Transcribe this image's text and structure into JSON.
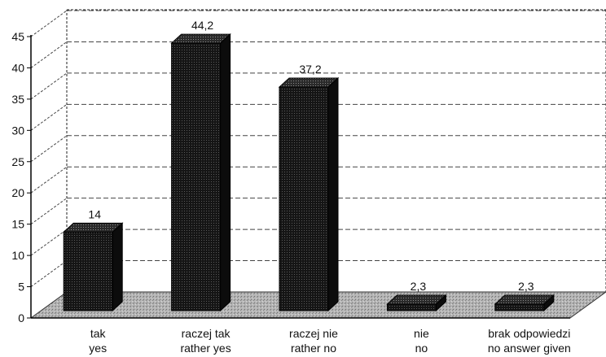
{
  "chart_data": {
    "type": "bar",
    "style": "3d-column",
    "categories": [
      [
        "tak",
        "yes"
      ],
      [
        "raczej tak",
        "rather yes"
      ],
      [
        "raczej nie",
        "rather no"
      ],
      [
        "nie",
        "no"
      ],
      [
        "brak odpowiedzi",
        "no answer given"
      ]
    ],
    "values": [
      14,
      44.2,
      37.2,
      2.3,
      2.3
    ],
    "data_labels": [
      "14",
      "44,2",
      "37,2",
      "2,3",
      "2,3"
    ],
    "title": "",
    "xlabel": "",
    "ylabel": "",
    "ylim": [
      0,
      45
    ],
    "yticks": [
      0,
      5,
      10,
      15,
      20,
      25,
      30,
      35,
      40,
      45
    ],
    "grid": true,
    "legend": "none",
    "colors": {
      "bar_front": "#1c1c1c",
      "bar_top": "#3a3a3a",
      "bar_side": "#0c0c0c",
      "floor": "#a8a8a8",
      "grid": "#444444"
    }
  }
}
